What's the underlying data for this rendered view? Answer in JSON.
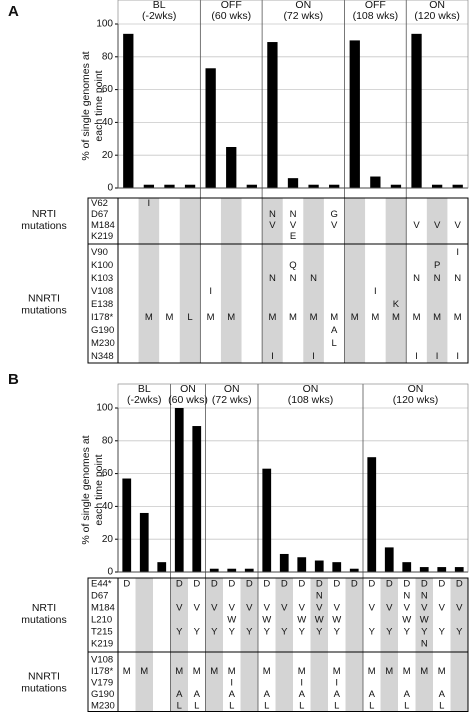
{
  "chart_data": [
    {
      "type": "bar",
      "panel": "A",
      "color": "#000000",
      "grid": true,
      "ylabel": [
        "% of single genomes at",
        "each time point"
      ],
      "ylim": [
        0,
        100
      ],
      "yticks": [
        0,
        20,
        40,
        60,
        80,
        100
      ],
      "groups": [
        {
          "label": [
            "BL",
            "(-2wks)"
          ],
          "values": [
            94,
            2,
            2,
            2
          ]
        },
        {
          "label": [
            "OFF",
            "(60 wks)"
          ],
          "values": [
            73,
            25,
            2
          ]
        },
        {
          "label": [
            "ON",
            "(72 wks)"
          ],
          "values": [
            89,
            6,
            2,
            2
          ]
        },
        {
          "label": [
            "OFF",
            "(108 wks)"
          ],
          "values": [
            90,
            7,
            2
          ]
        },
        {
          "label": [
            "ON",
            "(120 wks)"
          ],
          "values": [
            94,
            2,
            2
          ]
        }
      ],
      "sections": [
        {
          "label": [
            "NRTI",
            "mutations"
          ],
          "rows": [
            {
              "name": "V62",
              "cells": [
                null,
                "I",
                null,
                null,
                null,
                null,
                null,
                null,
                null,
                null,
                null,
                null,
                null,
                null,
                null,
                null,
                null
              ]
            },
            {
              "name": "D67",
              "cells": [
                null,
                null,
                null,
                null,
                null,
                null,
                null,
                "N",
                "N",
                null,
                "G",
                null,
                null,
                null,
                null,
                null,
                null
              ]
            },
            {
              "name": "M184",
              "cells": [
                null,
                null,
                null,
                null,
                null,
                null,
                null,
                "V",
                "V",
                null,
                "V",
                null,
                null,
                null,
                "V",
                "V",
                "V"
              ]
            },
            {
              "name": "K219",
              "cells": [
                null,
                null,
                null,
                null,
                null,
                null,
                null,
                null,
                "E",
                null,
                null,
                null,
                null,
                null,
                null,
                null,
                null
              ]
            }
          ]
        },
        {
          "label": [
            "NNRTI",
            "mutations"
          ],
          "rows": [
            {
              "name": "V90",
              "cells": [
                null,
                null,
                null,
                null,
                null,
                null,
                null,
                null,
                null,
                null,
                null,
                null,
                null,
                null,
                null,
                null,
                "I"
              ]
            },
            {
              "name": "K100",
              "cells": [
                null,
                null,
                null,
                null,
                null,
                null,
                null,
                null,
                "Q",
                null,
                null,
                null,
                null,
                null,
                null,
                "P",
                null
              ]
            },
            {
              "name": "K103",
              "cells": [
                null,
                null,
                null,
                null,
                null,
                null,
                null,
                "N",
                "N",
                "N",
                null,
                null,
                null,
                null,
                "N",
                "N",
                "N"
              ]
            },
            {
              "name": "V108",
              "cells": [
                null,
                null,
                null,
                null,
                "I",
                null,
                null,
                null,
                null,
                null,
                null,
                null,
                "I",
                null,
                null,
                null,
                null
              ]
            },
            {
              "name": "E138",
              "cells": [
                null,
                null,
                null,
                null,
                null,
                null,
                null,
                null,
                null,
                null,
                null,
                null,
                null,
                "K",
                null,
                null,
                null
              ]
            },
            {
              "name": "I178*",
              "cells": [
                null,
                "M",
                "M",
                "L",
                "M",
                "M",
                null,
                "M",
                "M",
                "M",
                "M",
                "M",
                "M",
                "M",
                "M",
                "M",
                "M"
              ]
            },
            {
              "name": "G190",
              "cells": [
                null,
                null,
                null,
                null,
                null,
                null,
                null,
                null,
                null,
                null,
                "A",
                null,
                null,
                null,
                null,
                null,
                null
              ]
            },
            {
              "name": "M230",
              "cells": [
                null,
                null,
                null,
                null,
                null,
                null,
                null,
                null,
                null,
                null,
                "L",
                null,
                null,
                null,
                null,
                null,
                null
              ]
            },
            {
              "name": "N348",
              "cells": [
                null,
                null,
                null,
                null,
                null,
                null,
                null,
                "I",
                null,
                "I",
                null,
                null,
                null,
                null,
                "I",
                "I",
                "I"
              ]
            }
          ]
        }
      ]
    },
    {
      "type": "bar",
      "panel": "B",
      "color": "#000000",
      "grid": true,
      "ylabel": [
        "% of single genomes at",
        "each time point"
      ],
      "ylim": [
        0,
        100
      ],
      "yticks": [
        0,
        20,
        40,
        60,
        80,
        100
      ],
      "groups": [
        {
          "label": [
            "BL",
            "(-2wks)"
          ],
          "values": [
            57,
            36,
            6
          ]
        },
        {
          "label": [
            "ON",
            "(60 wks)"
          ],
          "values": [
            100,
            89
          ]
        },
        {
          "label": [
            "ON",
            "(72 wks)"
          ],
          "values": [
            2,
            2,
            2
          ]
        },
        {
          "label": [
            "ON",
            "(108 wks)"
          ],
          "values": [
            63,
            11,
            9,
            7,
            6,
            2
          ]
        },
        {
          "label": [
            "ON",
            "(120 wks)"
          ],
          "values": [
            70,
            15,
            6,
            3,
            3,
            3
          ]
        }
      ],
      "sections": [
        {
          "label": [
            "NRTI",
            "mutations"
          ],
          "rows": [
            {
              "name": "E44*",
              "cells": [
                "D",
                null,
                null,
                "D",
                "D",
                "D",
                "D",
                "D",
                "D",
                "D",
                "D",
                "D",
                "D",
                "D",
                "D",
                "D",
                "D",
                "D",
                "D",
                "D"
              ]
            },
            {
              "name": "D67",
              "cells": [
                null,
                null,
                null,
                null,
                null,
                null,
                null,
                null,
                null,
                null,
                null,
                "N",
                null,
                null,
                null,
                null,
                "N",
                "N",
                null,
                null
              ]
            },
            {
              "name": "M184",
              "cells": [
                null,
                null,
                null,
                "V",
                "V",
                "V",
                "V",
                "V",
                "V",
                "V",
                "V",
                "V",
                "V",
                null,
                "V",
                "V",
                "V",
                "V",
                "V",
                "V"
              ]
            },
            {
              "name": "L210",
              "cells": [
                null,
                null,
                null,
                null,
                null,
                null,
                "W",
                null,
                "W",
                null,
                "W",
                "W",
                "W",
                null,
                null,
                null,
                "W",
                "W",
                null,
                null
              ]
            },
            {
              "name": "T215",
              "cells": [
                null,
                null,
                null,
                "Y",
                "Y",
                "Y",
                "Y",
                "Y",
                "Y",
                "Y",
                "Y",
                "Y",
                "Y",
                null,
                "Y",
                "Y",
                "Y",
                "Y",
                "Y",
                "Y"
              ]
            },
            {
              "name": "K219",
              "cells": [
                null,
                null,
                null,
                null,
                null,
                null,
                null,
                null,
                null,
                null,
                null,
                null,
                null,
                null,
                null,
                null,
                null,
                "N",
                null,
                null
              ]
            }
          ]
        },
        {
          "label": [
            "NNRTI",
            "mutations"
          ],
          "rows": [
            {
              "name": "V108",
              "cells": [
                null,
                null,
                null,
                null,
                null,
                null,
                null,
                null,
                null,
                null,
                null,
                null,
                null,
                null,
                null,
                null,
                null,
                null,
                null,
                null
              ]
            },
            {
              "name": "I178*",
              "cells": [
                "M",
                "M",
                null,
                "M",
                "M",
                "M",
                "M",
                null,
                "M",
                null,
                "M",
                null,
                "M",
                null,
                "M",
                "M",
                "M",
                "M",
                "M",
                null
              ]
            },
            {
              "name": "V179",
              "cells": [
                null,
                null,
                null,
                null,
                null,
                null,
                "I",
                null,
                null,
                null,
                "I",
                null,
                "I",
                null,
                null,
                null,
                null,
                null,
                null,
                null
              ]
            },
            {
              "name": "G190",
              "cells": [
                null,
                null,
                null,
                "A",
                "A",
                null,
                "A",
                null,
                "A",
                null,
                "A",
                null,
                "A",
                null,
                "A",
                null,
                "A",
                null,
                "A",
                null
              ]
            },
            {
              "name": "M230",
              "cells": [
                null,
                null,
                null,
                "L",
                "L",
                null,
                "L",
                null,
                "L",
                null,
                "L",
                null,
                "L",
                null,
                "L",
                null,
                "L",
                null,
                "L",
                null
              ]
            }
          ]
        }
      ]
    }
  ]
}
